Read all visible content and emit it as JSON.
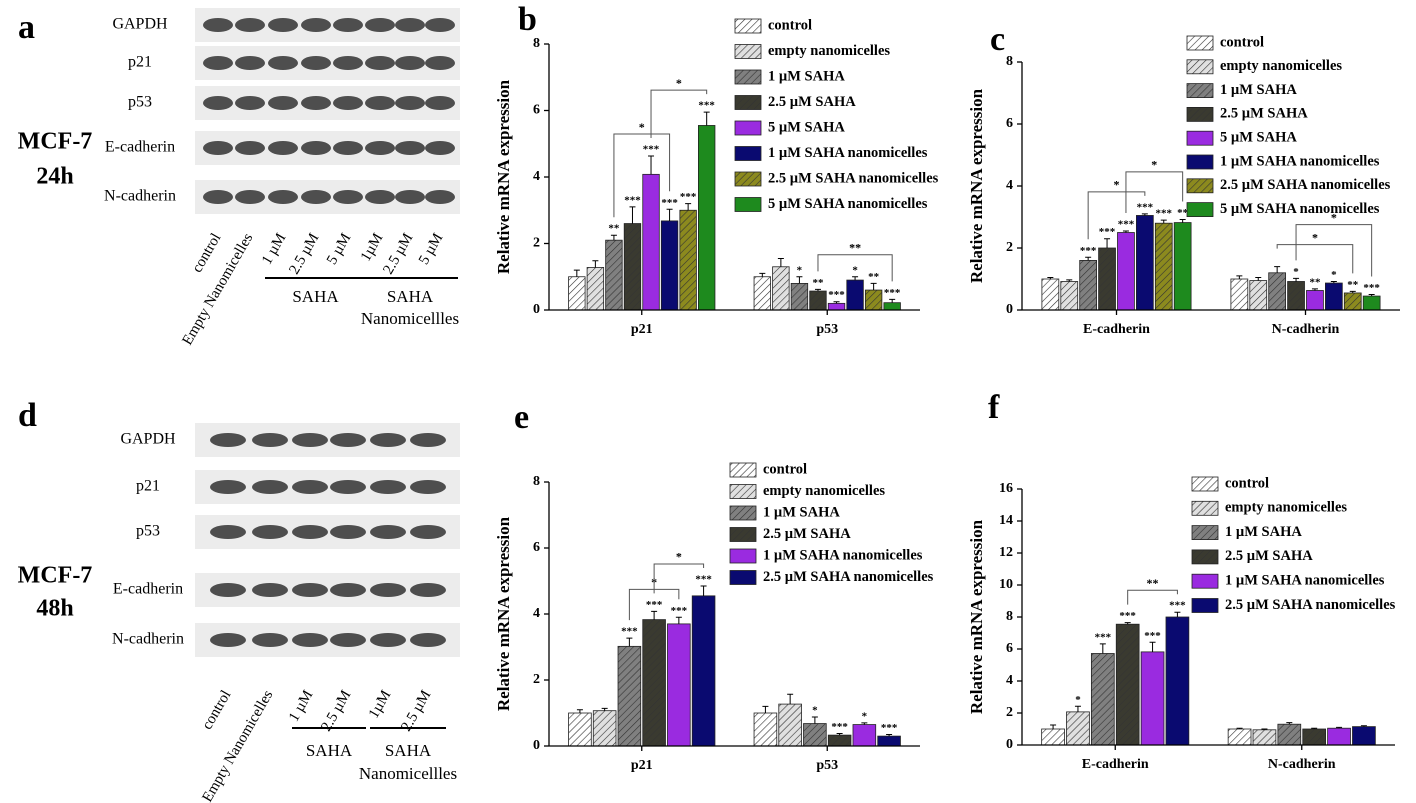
{
  "blots": [
    {
      "label": "a",
      "cell_line": "MCF-7",
      "time": "24h",
      "rows": [
        "GAPDH",
        "p21",
        "p53",
        "E-cadherin",
        "N-cadherin"
      ],
      "lanes": [
        "control",
        "Empty Nanomicelles",
        "1 µM",
        "2.5 µM",
        "5 µM",
        "1µM",
        "2.5 µM",
        "5 µM"
      ],
      "groups": [
        {
          "name_lines": [
            "SAHA"
          ],
          "lanes": [
            2,
            4
          ]
        },
        {
          "name_lines": [
            "SAHA",
            "Nanomicellles"
          ],
          "lanes": [
            5,
            7
          ]
        }
      ]
    },
    {
      "label": "d",
      "cell_line": "MCF-7",
      "time": "48h",
      "rows": [
        "GAPDH",
        "p21",
        "p53",
        "E-cadherin",
        "N-cadherin"
      ],
      "lanes": [
        "control",
        "Empty Nanomicelles",
        "1 µM",
        "2.5 µM",
        "1µM",
        "2.5 µM"
      ],
      "groups": [
        {
          "name_lines": [
            "SAHA"
          ],
          "lanes": [
            2,
            3
          ]
        },
        {
          "name_lines": [
            "SAHA",
            "Nanomicellles"
          ],
          "lanes": [
            4,
            5
          ]
        }
      ]
    }
  ],
  "chart_data": [
    {
      "type": "bar",
      "label": "b",
      "y_label": "Relative mRNA expression",
      "categories": [
        "p21",
        "p53"
      ],
      "ylim": [
        0,
        8
      ],
      "yticks": [
        0,
        2,
        4,
        6,
        8
      ],
      "series": [
        {
          "name": "control",
          "color": "#ffffff",
          "hatch": true,
          "values": [
            1.0,
            1.0
          ],
          "errors": [
            0.2,
            0.1
          ],
          "stars": [
            null,
            null
          ]
        },
        {
          "name": "empty nanomicelles",
          "color": "#e0e0e0",
          "hatch": true,
          "values": [
            1.28,
            1.3
          ],
          "errors": [
            0.2,
            0.25
          ],
          "stars": [
            null,
            null
          ]
        },
        {
          "name": "1 µM SAHA",
          "color": "#808080",
          "hatch": true,
          "values": [
            2.1,
            0.8
          ],
          "errors": [
            0.15,
            0.2
          ],
          "stars": [
            "**",
            "*"
          ]
        },
        {
          "name": "2.5 µM SAHA",
          "color": "#3a3a30",
          "hatch": true,
          "values": [
            2.6,
            0.57
          ],
          "errors": [
            0.5,
            0.05
          ],
          "stars": [
            "***",
            "**"
          ]
        },
        {
          "name": "5 µM SAHA",
          "color": "#9a2be0",
          "hatch": false,
          "values": [
            4.08,
            0.2
          ],
          "errors": [
            0.55,
            0.05
          ],
          "stars": [
            "***",
            "***"
          ]
        },
        {
          "name": "1 µM SAHA nanomicelles",
          "color": "#0a0a70",
          "hatch": false,
          "values": [
            2.68,
            0.9
          ],
          "errors": [
            0.35,
            0.1
          ],
          "stars": [
            "***",
            "*"
          ]
        },
        {
          "name": "2.5 µM SAHA nanomicelles",
          "color": "#8c8a1e",
          "hatch": true,
          "values": [
            3.0,
            0.6
          ],
          "errors": [
            0.2,
            0.2
          ],
          "stars": [
            "***",
            "**"
          ]
        },
        {
          "name": "5 µM SAHA nanomicelles",
          "color": "#1e8a1e",
          "hatch": false,
          "values": [
            5.55,
            0.22
          ],
          "errors": [
            0.4,
            0.1
          ],
          "stars": [
            "***",
            "***"
          ]
        }
      ],
      "comparisons": [
        {
          "category": 0,
          "series": [
            2,
            5
          ],
          "label": "*"
        },
        {
          "category": 0,
          "series": [
            4,
            7
          ],
          "label": "*"
        },
        {
          "category": 1,
          "series": [
            3,
            7
          ],
          "label": "**"
        }
      ]
    },
    {
      "type": "bar",
      "label": "c",
      "y_label": "Relative mRNA expression",
      "categories": [
        "E-cadherin",
        "N-cadherin"
      ],
      "ylim": [
        0,
        8
      ],
      "yticks": [
        0,
        2,
        4,
        6,
        8
      ],
      "series": [
        {
          "name": "control",
          "color": "#ffffff",
          "hatch": true,
          "values": [
            1.0,
            1.0
          ],
          "errors": [
            0.05,
            0.1
          ],
          "stars": [
            null,
            null
          ]
        },
        {
          "name": "empty nanomicelles",
          "color": "#e0e0e0",
          "hatch": true,
          "values": [
            0.92,
            0.95
          ],
          "errors": [
            0.05,
            0.1
          ],
          "stars": [
            null,
            null
          ]
        },
        {
          "name": "1 µM SAHA",
          "color": "#808080",
          "hatch": true,
          "values": [
            1.6,
            1.2
          ],
          "errors": [
            0.1,
            0.2
          ],
          "stars": [
            "***",
            null
          ]
        },
        {
          "name": "2.5 µM SAHA",
          "color": "#3a3a30",
          "hatch": true,
          "values": [
            2.0,
            0.92
          ],
          "errors": [
            0.3,
            0.1
          ],
          "stars": [
            "***",
            "*"
          ]
        },
        {
          "name": "5 µM SAHA",
          "color": "#9a2be0",
          "hatch": false,
          "values": [
            2.5,
            0.63
          ],
          "errors": [
            0.05,
            0.05
          ],
          "stars": [
            "***",
            "**"
          ]
        },
        {
          "name": "1 µM SAHA nanomicelles",
          "color": "#0a0a70",
          "hatch": false,
          "values": [
            3.05,
            0.87
          ],
          "errors": [
            0.05,
            0.05
          ],
          "stars": [
            "***",
            "*"
          ]
        },
        {
          "name": "2.5 µM SAHA nanomicelles",
          "color": "#8c8a1e",
          "hatch": true,
          "values": [
            2.8,
            0.55
          ],
          "errors": [
            0.1,
            0.05
          ],
          "stars": [
            "***",
            "**"
          ]
        },
        {
          "name": "5 µM SAHA nanomicelles",
          "color": "#1e8a1e",
          "hatch": false,
          "values": [
            2.82,
            0.45
          ],
          "errors": [
            0.1,
            0.05
          ],
          "stars": [
            "**",
            "***"
          ]
        }
      ],
      "comparisons": [
        {
          "category": 0,
          "series": [
            2,
            5
          ],
          "label": "*"
        },
        {
          "category": 0,
          "series": [
            4,
            7
          ],
          "label": "*"
        },
        {
          "category": 1,
          "series": [
            2,
            6
          ],
          "label": "*"
        },
        {
          "category": 1,
          "series": [
            3,
            7
          ],
          "label": "*"
        }
      ]
    },
    {
      "type": "bar",
      "label": "e",
      "y_label": "Relative mRNA expression",
      "categories": [
        "p21",
        "p53"
      ],
      "ylim": [
        0,
        8
      ],
      "yticks": [
        0,
        2,
        4,
        6,
        8
      ],
      "series": [
        {
          "name": "control",
          "color": "#ffffff",
          "hatch": true,
          "values": [
            1.0,
            1.0
          ],
          "errors": [
            0.1,
            0.2
          ],
          "stars": [
            null,
            null
          ]
        },
        {
          "name": "empty nanomicelles",
          "color": "#e0e0e0",
          "hatch": true,
          "values": [
            1.07,
            1.27
          ],
          "errors": [
            0.07,
            0.3
          ],
          "stars": [
            null,
            null
          ]
        },
        {
          "name": "1 µM SAHA",
          "color": "#808080",
          "hatch": true,
          "values": [
            3.02,
            0.68
          ],
          "errors": [
            0.25,
            0.2
          ],
          "stars": [
            "***",
            "*"
          ]
        },
        {
          "name": "2.5 µM SAHA",
          "color": "#3a3a30",
          "hatch": true,
          "values": [
            3.83,
            0.33
          ],
          "errors": [
            0.25,
            0.05
          ],
          "stars": [
            "***",
            "***"
          ]
        },
        {
          "name": "1 µM SAHA nanomicelles",
          "color": "#9a2be0",
          "hatch": false,
          "values": [
            3.7,
            0.65
          ],
          "errors": [
            0.2,
            0.05
          ],
          "stars": [
            "***",
            "*"
          ]
        },
        {
          "name": "2.5 µM SAHA nanomicelles",
          "color": "#0a0a70",
          "hatch": false,
          "values": [
            4.55,
            0.3
          ],
          "errors": [
            0.3,
            0.05
          ],
          "stars": [
            "***",
            "***"
          ]
        }
      ],
      "comparisons": [
        {
          "category": 0,
          "series": [
            2,
            4
          ],
          "label": "*"
        },
        {
          "category": 0,
          "series": [
            3,
            5
          ],
          "label": "*"
        }
      ]
    },
    {
      "type": "bar",
      "label": "f",
      "y_label": "Relative mRNA expression",
      "categories": [
        "E-cadherin",
        "N-cadherin"
      ],
      "ylim": [
        0,
        16
      ],
      "yticks": [
        0,
        2,
        4,
        6,
        8,
        10,
        12,
        14,
        16
      ],
      "series": [
        {
          "name": "control",
          "color": "#ffffff",
          "hatch": true,
          "values": [
            1.0,
            1.0
          ],
          "errors": [
            0.25,
            0.05
          ],
          "stars": [
            null,
            null
          ]
        },
        {
          "name": "empty nanomicelles",
          "color": "#e0e0e0",
          "hatch": true,
          "values": [
            2.07,
            0.95
          ],
          "errors": [
            0.35,
            0.05
          ],
          "stars": [
            "*",
            null
          ]
        },
        {
          "name": "1 µM SAHA",
          "color": "#808080",
          "hatch": true,
          "values": [
            5.72,
            1.3
          ],
          "errors": [
            0.6,
            0.1
          ],
          "stars": [
            "***",
            null
          ]
        },
        {
          "name": "2.5 µM SAHA",
          "color": "#3a3a30",
          "hatch": true,
          "values": [
            7.55,
            1.0
          ],
          "errors": [
            0.1,
            0.05
          ],
          "stars": [
            "***",
            null
          ]
        },
        {
          "name": "1 µM SAHA nanomicelles",
          "color": "#9a2be0",
          "hatch": false,
          "values": [
            5.82,
            1.05
          ],
          "errors": [
            0.6,
            0.05
          ],
          "stars": [
            "***",
            null
          ]
        },
        {
          "name": "2.5 µM SAHA nanomicelles",
          "color": "#0a0a70",
          "hatch": false,
          "values": [
            8.0,
            1.15
          ],
          "errors": [
            0.3,
            0.05
          ],
          "stars": [
            "***",
            null
          ]
        }
      ],
      "comparisons": [
        {
          "category": 0,
          "series": [
            3,
            5
          ],
          "label": "**"
        }
      ]
    }
  ]
}
